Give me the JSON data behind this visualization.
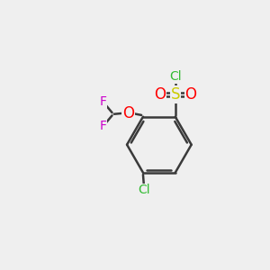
{
  "bg_color": "#efefef",
  "bond_color": "#3a3a3a",
  "bond_width": 1.8,
  "atom_colors": {
    "Cl_sulfonyl": "#33bb33",
    "Cl_ring": "#33bb33",
    "S": "#cccc00",
    "O": "#ff0000",
    "F": "#cc00cc",
    "C": "#3a3a3a"
  }
}
